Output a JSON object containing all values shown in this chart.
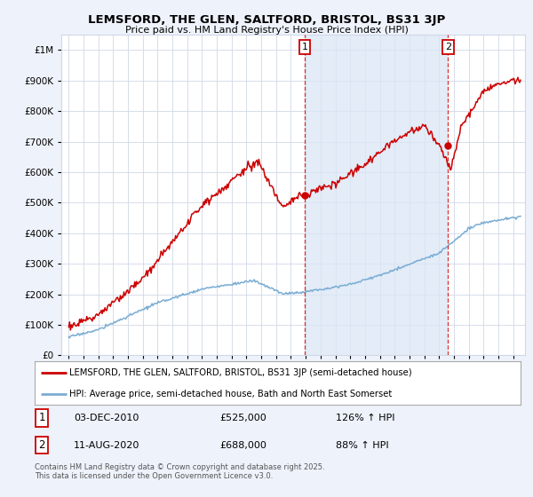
{
  "title": "LEMSFORD, THE GLEN, SALTFORD, BRISTOL, BS31 3JP",
  "subtitle": "Price paid vs. HM Land Registry's House Price Index (HPI)",
  "legend_line1": "LEMSFORD, THE GLEN, SALTFORD, BRISTOL, BS31 3JP (semi-detached house)",
  "legend_line2": "HPI: Average price, semi-detached house, Bath and North East Somerset",
  "annotation1_date": "03-DEC-2010",
  "annotation1_price": "£525,000",
  "annotation1_hpi": "126% ↑ HPI",
  "annotation2_date": "11-AUG-2020",
  "annotation2_price": "£688,000",
  "annotation2_hpi": "88% ↑ HPI",
  "footer": "Contains HM Land Registry data © Crown copyright and database right 2025.\nThis data is licensed under the Open Government Licence v3.0.",
  "price_color": "#cc0000",
  "hpi_color": "#7aadd4",
  "shade_color": "#dce8f5",
  "vline_color": "#cc0000",
  "vline1_x": 2010.92,
  "vline2_x": 2020.61,
  "dot1_x": 2010.92,
  "dot1_y": 525000,
  "dot2_x": 2020.61,
  "dot2_y": 688000,
  "ylim": [
    0,
    1050000
  ],
  "xlim_start": 1994.5,
  "xlim_end": 2025.8,
  "background_color": "#eef2fb",
  "plot_bg_color": "#ffffff",
  "grid_color": "#d0d8e8"
}
